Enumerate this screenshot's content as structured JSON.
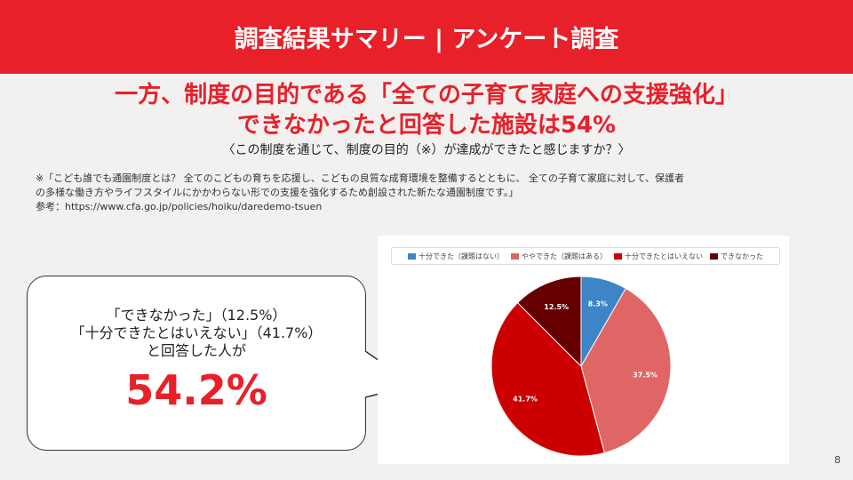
{
  "header": {
    "title": "調査結果サマリー | アンケート調査"
  },
  "headline": {
    "line1": "一方、制度の目的である「全ての子育て家庭への支援強化」",
    "line2": "できなかったと回答した施設は54%"
  },
  "question": "〈この制度を通じて、制度の目的（※）が達成ができたと感じますか？〉",
  "note": {
    "line1": "※「こども誰でも通園制度とは？ 全てのこどもの育ちを応援し、こどもの良質な成育環境を整備するとともに、 全ての子育て家庭に対して、保護者",
    "line2": "の多様な働き方やライフスタイルにかかわらない形での支援を強化するため創設された新たな通園制度です。」",
    "line3": "参考：https://www.cfa.go.jp/policies/hoiku/daredemo-tsuen"
  },
  "callout": {
    "line1": "「できなかった」（12.5%）",
    "line2": "「十分できたとはいえない」（41.7%）",
    "line3": "と回答した人が",
    "value": "54.2%"
  },
  "chart_data": {
    "type": "pie",
    "categories": [
      "十分できた（課題はない）",
      "ややできた（課題はある）",
      "十分できたとはいえない",
      "できなかった"
    ],
    "values": [
      8.3,
      37.5,
      41.7,
      12.5
    ],
    "labels": [
      "8.3%",
      "37.5%",
      "41.7%",
      "12.5%"
    ],
    "colors": [
      "#3d85c6",
      "#e06666",
      "#cc0000",
      "#660000"
    ],
    "legend": "top"
  },
  "page_number": "8"
}
